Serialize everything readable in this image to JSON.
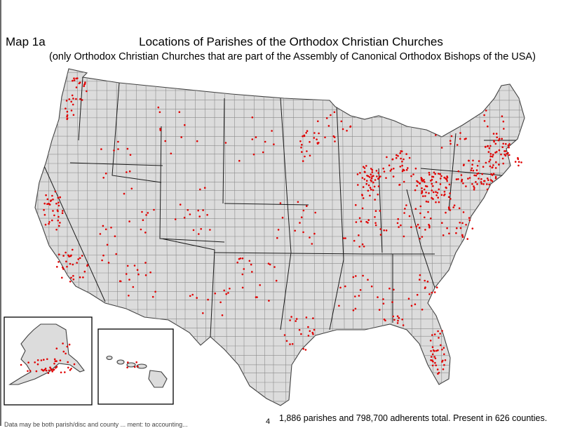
{
  "map": {
    "label": "Map 1a",
    "title": "Locations of Parishes of the Orthodox Christian Churches",
    "subtitle": "(only Orthodox Christian Churches that are part of the Assembly of Canonical Orthodox Bishops of the USA)",
    "summary": "1,886 parishes and 798,700 adherents total. Present in 626 counties.",
    "page_number": "4",
    "footnote": "Data may be both parish/disc and county ... ment: to accounting..."
  },
  "colors": {
    "land": "#dcdcdc",
    "county_lines": "#8c8c8c",
    "state_lines": "#1a1a1a",
    "parish_dots": "#e00000"
  },
  "insets": [
    "alaska",
    "hawaii"
  ]
}
